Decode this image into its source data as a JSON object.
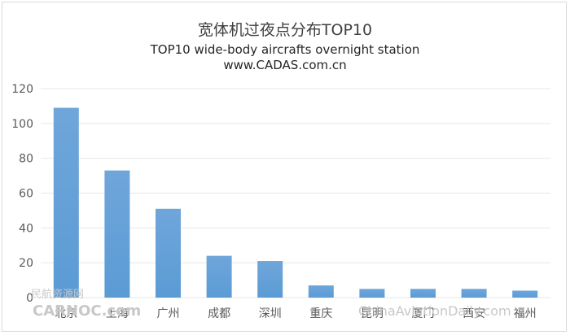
{
  "chart_data": {
    "type": "bar",
    "title": "宽体机过夜点分布TOP10",
    "subtitle": "TOP10 wide-body aircrafts overnight station",
    "source": "www.CADAS.com.cn",
    "categories": [
      "北京",
      "上海",
      "广州",
      "成都",
      "深圳",
      "重庆",
      "昆明",
      "厦门",
      "西安",
      "福州"
    ],
    "values": [
      109,
      73,
      51,
      24,
      21,
      7,
      5,
      5,
      5,
      4
    ],
    "ylim": [
      0,
      120
    ],
    "yticks": [
      0,
      20,
      40,
      60,
      80,
      100,
      120
    ],
    "grid": true,
    "legend": "none",
    "colors": {
      "bar": "#5b9bd5",
      "bar_top": "#6fa6da",
      "grid": "#e7e7e7"
    }
  },
  "watermarks": {
    "left": "民航资源网",
    "left_en": "CARNOC.com",
    "right": "ChinaAviationDaily.com"
  }
}
